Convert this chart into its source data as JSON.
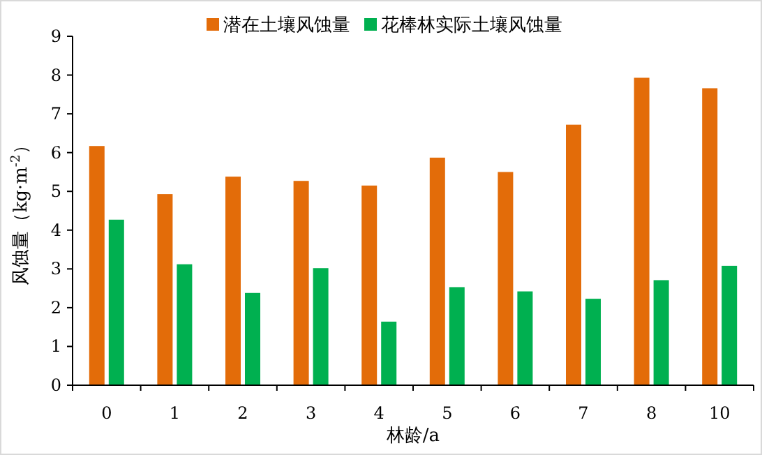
{
  "chart_data": {
    "type": "bar",
    "xlabel": "林龄/a",
    "ylabel": "风蚀量（kg·m$^{-2}$）",
    "categories": [
      "0",
      "1",
      "2",
      "3",
      "4",
      "5",
      "6",
      "7",
      "8",
      "10"
    ],
    "series": [
      {
        "name": "潜在土壤风蚀量",
        "color": "#e36c09",
        "values": [
          6.17,
          4.93,
          5.38,
          5.27,
          5.15,
          5.87,
          5.5,
          6.72,
          7.93,
          7.66
        ]
      },
      {
        "name": "花棒林实际土壤风蚀量",
        "color": "#00b050",
        "values": [
          4.27,
          3.12,
          2.38,
          3.02,
          1.64,
          2.53,
          2.42,
          2.23,
          2.71,
          3.08
        ]
      }
    ],
    "ylim": [
      0,
      9
    ],
    "yticks": [
      0,
      1,
      2,
      3,
      4,
      5,
      6,
      7,
      8,
      9
    ],
    "legend": "top",
    "grid": false
  }
}
